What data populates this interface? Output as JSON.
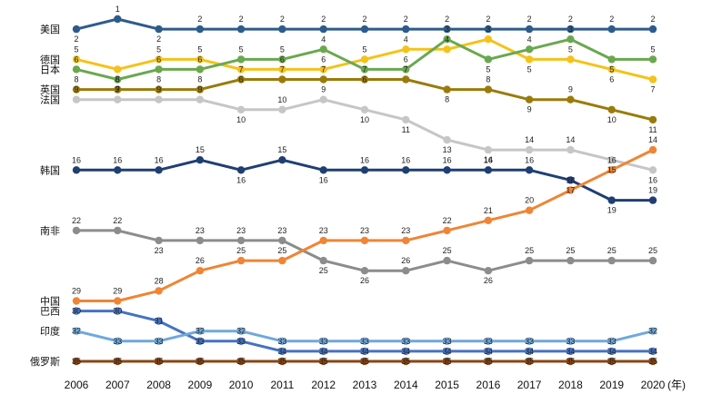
{
  "chart_data": {
    "type": "line",
    "title": "",
    "xlabel": "",
    "ylabel": "",
    "x_unit": "(年)",
    "x": [
      2006,
      2007,
      2008,
      2009,
      2010,
      2011,
      2012,
      2013,
      2014,
      2015,
      2016,
      2017,
      2018,
      2019,
      2020
    ],
    "ylim": [
      1,
      35
    ],
    "y_inverted": true,
    "grid": false,
    "series": [
      {
        "name": "美国",
        "color": "#2d5c8c",
        "values": [
          2,
          1,
          2,
          2,
          2,
          2,
          2,
          2,
          2,
          2,
          2,
          2,
          2,
          2,
          2
        ]
      },
      {
        "name": "德国",
        "color": "#f5c218",
        "values": [
          5,
          6,
          5,
          5,
          6,
          6,
          6,
          5,
          4,
          4,
          3,
          5,
          5,
          6,
          7
        ]
      },
      {
        "name": "日本",
        "color": "#6aa84f",
        "values": [
          6,
          7,
          6,
          6,
          5,
          5,
          4,
          6,
          6,
          3,
          5,
          4,
          3,
          5,
          5
        ]
      },
      {
        "name": "英国",
        "color": "#9a7b0a",
        "values": [
          8,
          8,
          8,
          8,
          7,
          7,
          7,
          7,
          7,
          8,
          8,
          9,
          9,
          10,
          11
        ]
      },
      {
        "name": "法国",
        "color": "#c6c6c6",
        "values": [
          9,
          9,
          9,
          9,
          10,
          10,
          9,
          10,
          11,
          13,
          14,
          14,
          14,
          15,
          16
        ]
      },
      {
        "name": "韩国",
        "color": "#1f3f73",
        "values": [
          16,
          16,
          16,
          15,
          16,
          15,
          16,
          16,
          16,
          16,
          16,
          16,
          17,
          19,
          19
        ]
      },
      {
        "name": "南非",
        "color": "#8c8c8c",
        "values": [
          22,
          22,
          23,
          23,
          23,
          23,
          25,
          26,
          26,
          25,
          26,
          25,
          25,
          25,
          25
        ]
      },
      {
        "name": "中国",
        "color": "#ef8535",
        "values": [
          29,
          29,
          28,
          26,
          25,
          25,
          23,
          23,
          23,
          22,
          21,
          20,
          18,
          16,
          14
        ]
      },
      {
        "name": "巴西",
        "color": "#4472c4",
        "values": [
          30,
          30,
          31,
          33,
          33,
          34,
          34,
          34,
          34,
          34,
          34,
          34,
          34,
          34,
          34
        ]
      },
      {
        "name": "印度",
        "color": "#6fa8dc",
        "values": [
          32,
          33,
          33,
          32,
          32,
          33,
          33,
          33,
          33,
          33,
          33,
          33,
          33,
          33,
          32
        ]
      },
      {
        "name": "俄罗斯",
        "color": "#8b4513",
        "values": [
          35,
          35,
          35,
          35,
          35,
          35,
          35,
          35,
          35,
          35,
          35,
          35,
          35,
          35,
          35
        ]
      }
    ]
  }
}
